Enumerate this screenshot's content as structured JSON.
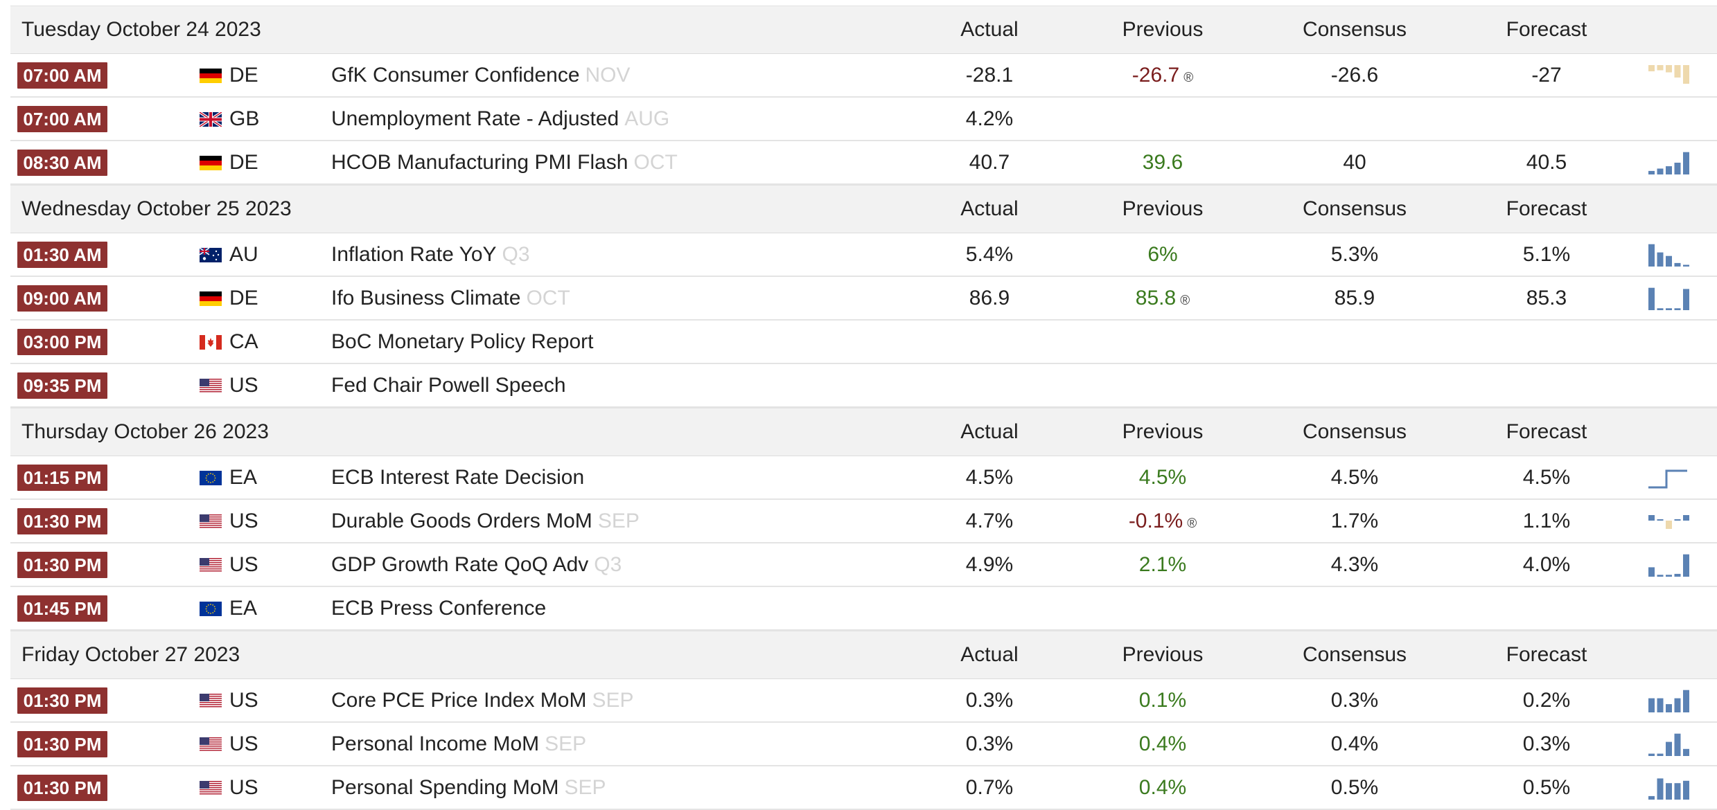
{
  "columns": {
    "actual": "Actual",
    "previous": "Previous",
    "consensus": "Consensus",
    "forecast": "Forecast"
  },
  "days": [
    {
      "date": "Tuesday October 24 2023",
      "events": [
        {
          "time": "07:00 AM",
          "flag": "de-flag-icon",
          "country": "DE",
          "name": "GfK Consumer Confidence",
          "ref": "NOV",
          "actual": "-28.1",
          "previous": "-26.7",
          "previous_color": "red",
          "revised": "®",
          "consensus": "-26.6",
          "forecast": "-27",
          "spark": {
            "values": [
              0.3,
              0.25,
              0.35,
              0.6,
              0.9
            ],
            "style": "bar-neg"
          }
        },
        {
          "time": "07:00 AM",
          "flag": "gb-flag-icon",
          "country": "GB",
          "name": "Unemployment Rate - Adjusted",
          "ref": "AUG",
          "actual": "4.2%",
          "previous": "",
          "previous_color": "",
          "revised": "",
          "consensus": "",
          "forecast": "",
          "spark": null
        },
        {
          "time": "08:30 AM",
          "flag": "de-flag-icon",
          "country": "DE",
          "name": "HCOB Manufacturing PMI Flash",
          "ref": "OCT",
          "actual": "40.7",
          "previous": "39.6",
          "previous_color": "green",
          "revised": "",
          "consensus": "40",
          "forecast": "40.5",
          "spark": {
            "values": [
              0.15,
              0.25,
              0.35,
              0.5,
              0.95
            ],
            "style": "bar"
          }
        }
      ]
    },
    {
      "date": "Wednesday October 25 2023",
      "events": [
        {
          "time": "01:30 AM",
          "flag": "au-flag-icon",
          "country": "AU",
          "name": "Inflation Rate YoY",
          "ref": "Q3",
          "actual": "5.4%",
          "previous": "6%",
          "previous_color": "green",
          "revised": "",
          "consensus": "5.3%",
          "forecast": "5.1%",
          "spark": {
            "values": [
              0.95,
              0.6,
              0.45,
              0.15,
              0.05
            ],
            "style": "bar"
          }
        },
        {
          "time": "09:00 AM",
          "flag": "de-flag-icon",
          "country": "DE",
          "name": "Ifo Business Climate",
          "ref": "OCT",
          "actual": "86.9",
          "previous": "85.8",
          "previous_color": "green",
          "revised": "®",
          "consensus": "85.9",
          "forecast": "85.3",
          "spark": {
            "values": [
              0.95,
              0.08,
              0.08,
              0.08,
              0.9
            ],
            "style": "bar"
          }
        },
        {
          "time": "03:00 PM",
          "flag": "ca-flag-icon",
          "country": "CA",
          "name": "BoC Monetary Policy Report",
          "ref": "",
          "actual": "",
          "previous": "",
          "previous_color": "",
          "revised": "",
          "consensus": "",
          "forecast": "",
          "spark": null
        },
        {
          "time": "09:35 PM",
          "flag": "us-flag-icon",
          "country": "US",
          "name": "Fed Chair Powell Speech",
          "ref": "",
          "actual": "",
          "previous": "",
          "previous_color": "",
          "revised": "",
          "consensus": "",
          "forecast": "",
          "spark": null
        }
      ]
    },
    {
      "date": "Thursday October 26 2023",
      "events": [
        {
          "time": "01:15 PM",
          "flag": "eu-flag-icon",
          "country": "EA",
          "name": "ECB Interest Rate Decision",
          "ref": "",
          "actual": "4.5%",
          "previous": "4.5%",
          "previous_color": "green",
          "revised": "",
          "consensus": "4.5%",
          "forecast": "4.5%",
          "spark": {
            "values": [
              0.1,
              0.1,
              0.9,
              0.9
            ],
            "style": "step"
          }
        },
        {
          "time": "01:30 PM",
          "flag": "us-flag-icon",
          "country": "US",
          "name": "Durable Goods Orders MoM",
          "ref": "SEP",
          "actual": "4.7%",
          "previous": "-0.1%",
          "previous_color": "red",
          "revised": "®",
          "consensus": "1.7%",
          "forecast": "1.1%",
          "spark": {
            "values": [
              0.4,
              0.1,
              -0.6,
              0.1,
              0.4
            ],
            "style": "bar-mixed"
          }
        },
        {
          "time": "01:30 PM",
          "flag": "us-flag-icon",
          "country": "US",
          "name": "GDP Growth Rate QoQ Adv",
          "ref": "Q3",
          "actual": "4.9%",
          "previous": "2.1%",
          "previous_color": "green",
          "revised": "",
          "consensus": "4.3%",
          "forecast": "4.0%",
          "spark": {
            "values": [
              0.4,
              0.08,
              0.08,
              0.12,
              0.95
            ],
            "style": "bar"
          }
        },
        {
          "time": "01:45 PM",
          "flag": "eu-flag-icon",
          "country": "EA",
          "name": "ECB Press Conference",
          "ref": "",
          "actual": "",
          "previous": "",
          "previous_color": "",
          "revised": "",
          "consensus": "",
          "forecast": "",
          "spark": null
        }
      ]
    },
    {
      "date": "Friday October 27 2023",
      "events": [
        {
          "time": "01:30 PM",
          "flag": "us-flag-icon",
          "country": "US",
          "name": "Core PCE Price Index MoM",
          "ref": "SEP",
          "actual": "0.3%",
          "previous": "0.1%",
          "previous_color": "green",
          "revised": "",
          "consensus": "0.3%",
          "forecast": "0.2%",
          "spark": {
            "values": [
              0.6,
              0.6,
              0.35,
              0.6,
              0.95
            ],
            "style": "bar"
          }
        },
        {
          "time": "01:30 PM",
          "flag": "us-flag-icon",
          "country": "US",
          "name": "Personal Income MoM",
          "ref": "SEP",
          "actual": "0.3%",
          "previous": "0.4%",
          "previous_color": "green",
          "revised": "",
          "consensus": "0.4%",
          "forecast": "0.3%",
          "spark": {
            "values": [
              0.1,
              0.1,
              0.6,
              0.95,
              0.3
            ],
            "style": "bar"
          }
        },
        {
          "time": "01:30 PM",
          "flag": "us-flag-icon",
          "country": "US",
          "name": "Personal Spending MoM",
          "ref": "SEP",
          "actual": "0.7%",
          "previous": "0.4%",
          "previous_color": "green",
          "revised": "",
          "consensus": "0.5%",
          "forecast": "0.5%",
          "spark": {
            "values": [
              0.15,
              0.9,
              0.7,
              0.7,
              0.8
            ],
            "style": "bar"
          }
        }
      ]
    }
  ],
  "colors": {
    "time_bg": "#8e3130",
    "previous_red": "#7a1d1d",
    "previous_green": "#3a7a1e",
    "spark_blue": "#5b82b4",
    "spark_tan": "#eed9ad",
    "ref_gray": "#d4d4d4"
  }
}
